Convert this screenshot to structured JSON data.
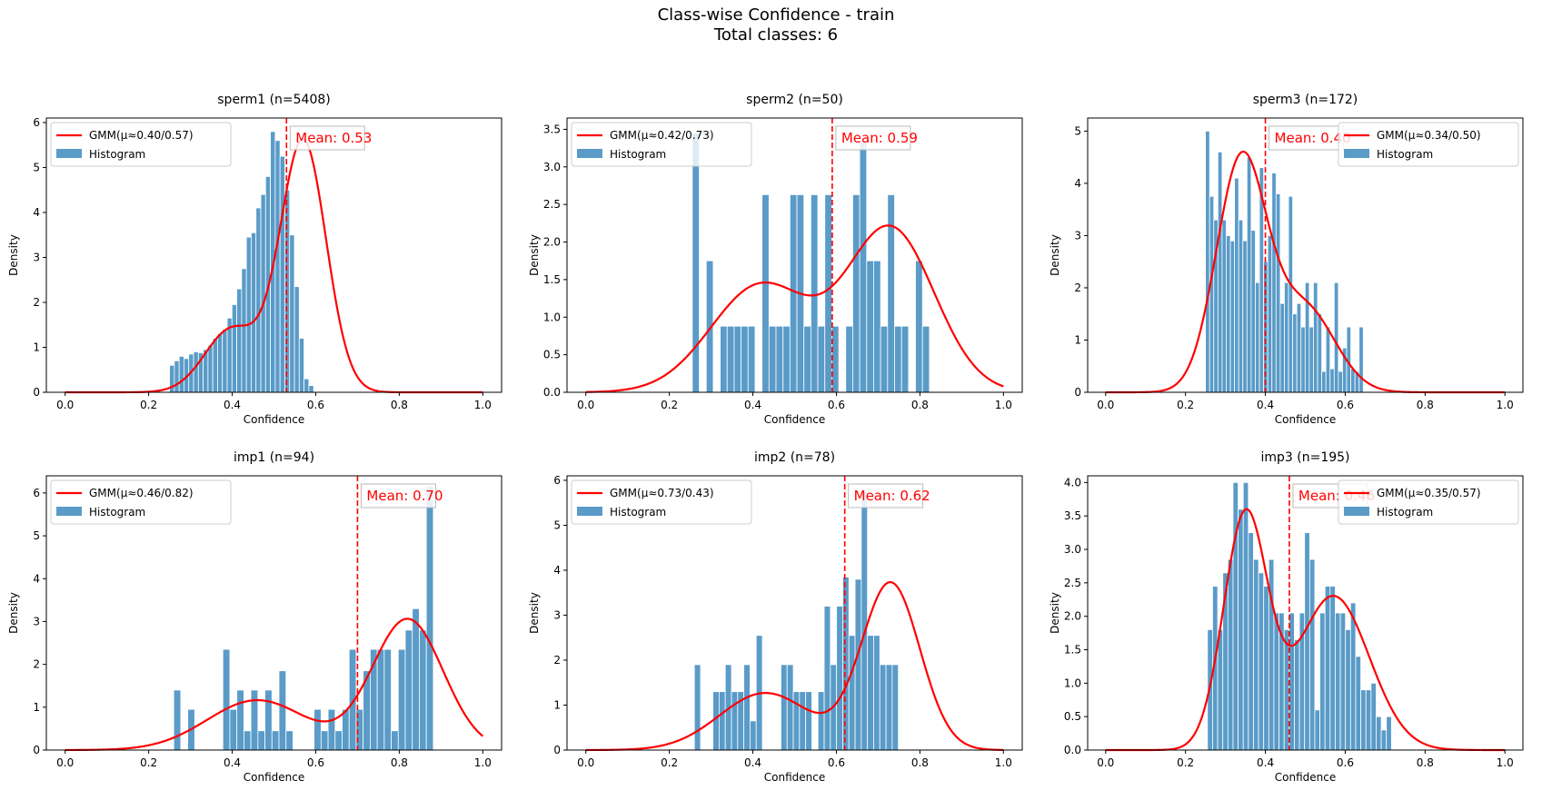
{
  "figure": {
    "title_line1": "Class-wise Confidence - train",
    "title_line2": "Total classes: 6"
  },
  "colors": {
    "bar": "#5a9bc8",
    "bar_edge": "#ffffff",
    "gmm": "#ff0000",
    "mean": "#ff0000",
    "axes": "#000000"
  },
  "chart_data": [
    {
      "type": "bar",
      "title": "sperm1 (n=5408)",
      "xlabel": "Confidence",
      "ylabel": "Density",
      "xlim": [
        0,
        1.0
      ],
      "ylim": [
        0,
        6.1
      ],
      "xticks": [
        "0.0",
        "0.2",
        "0.4",
        "0.6",
        "0.8",
        "1.0"
      ],
      "yticks": [
        0,
        1,
        2,
        3,
        4,
        5,
        6
      ],
      "legend": [
        "GMM(μ≈0.40/0.57)",
        "Histogram"
      ],
      "legend_loc": "upper left",
      "mean": 0.53,
      "mean_label": "Mean: 0.53",
      "bin_start": 0.25,
      "bin_width": 0.0115,
      "values": [
        0.6,
        0.7,
        0.8,
        0.75,
        0.85,
        0.9,
        0.88,
        0.95,
        1.05,
        1.2,
        1.3,
        1.4,
        1.65,
        1.95,
        2.3,
        2.75,
        3.45,
        3.55,
        4.1,
        4.4,
        4.8,
        5.8,
        5.6,
        5.25,
        4.5,
        3.5,
        2.35,
        1.2,
        0.3,
        0.15
      ],
      "gmm": [
        {
          "w": 0.23,
          "mu": 0.4,
          "sigma": 0.065
        },
        {
          "w": 0.77,
          "mu": 0.57,
          "sigma": 0.055
        }
      ]
    },
    {
      "type": "bar",
      "title": "sperm2 (n=50)",
      "xlabel": "Confidence",
      "ylabel": "Density",
      "xlim": [
        0,
        1.0
      ],
      "ylim": [
        0,
        3.65
      ],
      "xticks": [
        "0.0",
        "0.2",
        "0.4",
        "0.6",
        "0.8",
        "1.0"
      ],
      "yticks": [
        0.0,
        0.5,
        1.0,
        1.5,
        2.0,
        2.5,
        3.0,
        3.5
      ],
      "legend": [
        "GMM(μ≈0.42/0.73)",
        "Histogram"
      ],
      "legend_loc": "upper left",
      "mean": 0.59,
      "mean_label": "Mean: 0.59",
      "bin_start": 0.255,
      "bin_width": 0.0167,
      "values": [
        3.45,
        0,
        1.75,
        0,
        0.88,
        0.88,
        0.88,
        0.88,
        0.88,
        0,
        2.63,
        0.88,
        0.88,
        0.88,
        2.63,
        2.63,
        0.88,
        2.63,
        0.88,
        2.63,
        0.88,
        0,
        0.88,
        2.63,
        3.35,
        1.75,
        1.75,
        0.88,
        2.63,
        0.88,
        0.88,
        0,
        1.75,
        0.88
      ],
      "gmm": [
        {
          "w": 0.43,
          "mu": 0.42,
          "sigma": 0.12
        },
        {
          "w": 0.57,
          "mu": 0.73,
          "sigma": 0.105
        }
      ]
    },
    {
      "type": "bar",
      "title": "sperm3 (n=172)",
      "xlabel": "Confidence",
      "ylabel": "Density",
      "xlim": [
        0,
        1.0
      ],
      "ylim": [
        0,
        5.25
      ],
      "xticks": [
        "0.0",
        "0.2",
        "0.4",
        "0.6",
        "0.8",
        "1.0"
      ],
      "yticks": [
        0,
        1,
        2,
        3,
        4,
        5
      ],
      "legend": [
        "GMM(μ≈0.34/0.50)",
        "Histogram"
      ],
      "legend_loc": "upper right",
      "mean": 0.4,
      "mean_label": "Mean: 0.40",
      "bin_start": 0.25,
      "bin_width": 0.0104,
      "values": [
        5.0,
        3.75,
        3.3,
        4.6,
        3.3,
        3.0,
        2.9,
        4.1,
        3.3,
        2.9,
        4.5,
        3.1,
        2.1,
        4.3,
        2.5,
        3.0,
        4.2,
        3.8,
        1.7,
        2.1,
        3.75,
        1.5,
        1.7,
        1.25,
        2.1,
        1.25,
        2.1,
        1.5,
        0.4,
        1.25,
        0.45,
        2.1,
        0.4,
        0.85,
        1.25,
        0.45,
        0.4,
        1.25
      ],
      "gmm": [
        {
          "w": 0.7,
          "mu": 0.34,
          "sigma": 0.063
        },
        {
          "w": 0.3,
          "mu": 0.5,
          "sigma": 0.075
        }
      ]
    },
    {
      "type": "bar",
      "title": "imp1 (n=94)",
      "xlabel": "Confidence",
      "ylabel": "Density",
      "xlim": [
        0,
        1.0
      ],
      "ylim": [
        0,
        6.4
      ],
      "xticks": [
        "0.0",
        "0.2",
        "0.4",
        "0.6",
        "0.8",
        "1.0"
      ],
      "yticks": [
        0,
        1,
        2,
        3,
        4,
        5,
        6
      ],
      "legend": [
        "GMM(μ≈0.46/0.82)",
        "Histogram"
      ],
      "legend_loc": "upper left",
      "mean": 0.7,
      "mean_label": "Mean: 0.70",
      "bin_start": 0.26,
      "bin_width": 0.0168,
      "values": [
        1.4,
        0,
        0.95,
        0,
        0,
        0,
        0,
        2.35,
        0.95,
        1.4,
        0.45,
        1.4,
        0.45,
        1.4,
        0.45,
        1.85,
        0.45,
        0,
        0,
        0,
        0.95,
        0.45,
        0.95,
        0.45,
        0.95,
        2.35,
        0.95,
        1.85,
        2.35,
        2.35,
        2.35,
        0.45,
        2.35,
        2.8,
        3.3,
        2.8,
        6.15,
        0
      ],
      "gmm": [
        {
          "w": 0.35,
          "mu": 0.46,
          "sigma": 0.12
        },
        {
          "w": 0.65,
          "mu": 0.82,
          "sigma": 0.085
        }
      ]
    },
    {
      "type": "bar",
      "title": "imp2 (n=78)",
      "xlabel": "Confidence",
      "ylabel": "Density",
      "xlim": [
        0,
        1.0
      ],
      "ylim": [
        0,
        6.1
      ],
      "xticks": [
        "0.0",
        "0.2",
        "0.4",
        "0.6",
        "0.8",
        "1.0"
      ],
      "yticks": [
        0,
        1,
        2,
        3,
        4,
        5,
        6
      ],
      "legend": [
        "GMM(μ≈0.73/0.43)",
        "Histogram"
      ],
      "legend_loc": "upper left",
      "mean": 0.62,
      "mean_label": "Mean: 0.62",
      "bin_start": 0.26,
      "bin_width": 0.0148,
      "values": [
        1.9,
        0,
        0,
        1.3,
        1.3,
        1.9,
        1.3,
        1.3,
        1.9,
        0.65,
        2.55,
        0,
        0,
        0,
        1.9,
        1.9,
        1.3,
        1.3,
        1.3,
        0,
        1.3,
        3.2,
        1.9,
        3.2,
        3.85,
        2.55,
        3.8,
        5.75,
        2.55,
        2.55,
        1.9,
        1.9,
        1.9
      ],
      "gmm": [
        {
          "w": 0.35,
          "mu": 0.43,
          "sigma": 0.11
        },
        {
          "w": 0.65,
          "mu": 0.73,
          "sigma": 0.07
        }
      ]
    },
    {
      "type": "bar",
      "title": "imp3 (n=195)",
      "xlabel": "Confidence",
      "ylabel": "Density",
      "xlim": [
        0,
        1.0
      ],
      "ylim": [
        0,
        4.1
      ],
      "xticks": [
        "0.0",
        "0.2",
        "0.4",
        "0.6",
        "0.8",
        "1.0"
      ],
      "yticks": [
        0.0,
        0.5,
        1.0,
        1.5,
        2.0,
        2.5,
        3.0,
        3.5,
        4.0
      ],
      "legend": [
        "GMM(μ≈0.35/0.57)",
        "Histogram"
      ],
      "legend_loc": "upper right",
      "mean": 0.46,
      "mean_label": "Mean: 0.46",
      "bin_start": 0.255,
      "bin_width": 0.0128,
      "values": [
        1.8,
        2.45,
        1.8,
        2.65,
        2.85,
        4.0,
        3.6,
        4.0,
        3.25,
        2.85,
        2.65,
        2.45,
        2.85,
        2.05,
        2.05,
        1.8,
        2.05,
        1.65,
        2.05,
        3.25,
        2.85,
        0.6,
        2.05,
        2.45,
        2.45,
        2.05,
        2.05,
        1.8,
        2.2,
        1.4,
        0.9,
        0.9,
        1.0,
        0.5,
        0.3,
        0.5
      ],
      "gmm": [
        {
          "w": 0.48,
          "mu": 0.35,
          "sigma": 0.055
        },
        {
          "w": 0.52,
          "mu": 0.57,
          "sigma": 0.09
        }
      ]
    }
  ]
}
